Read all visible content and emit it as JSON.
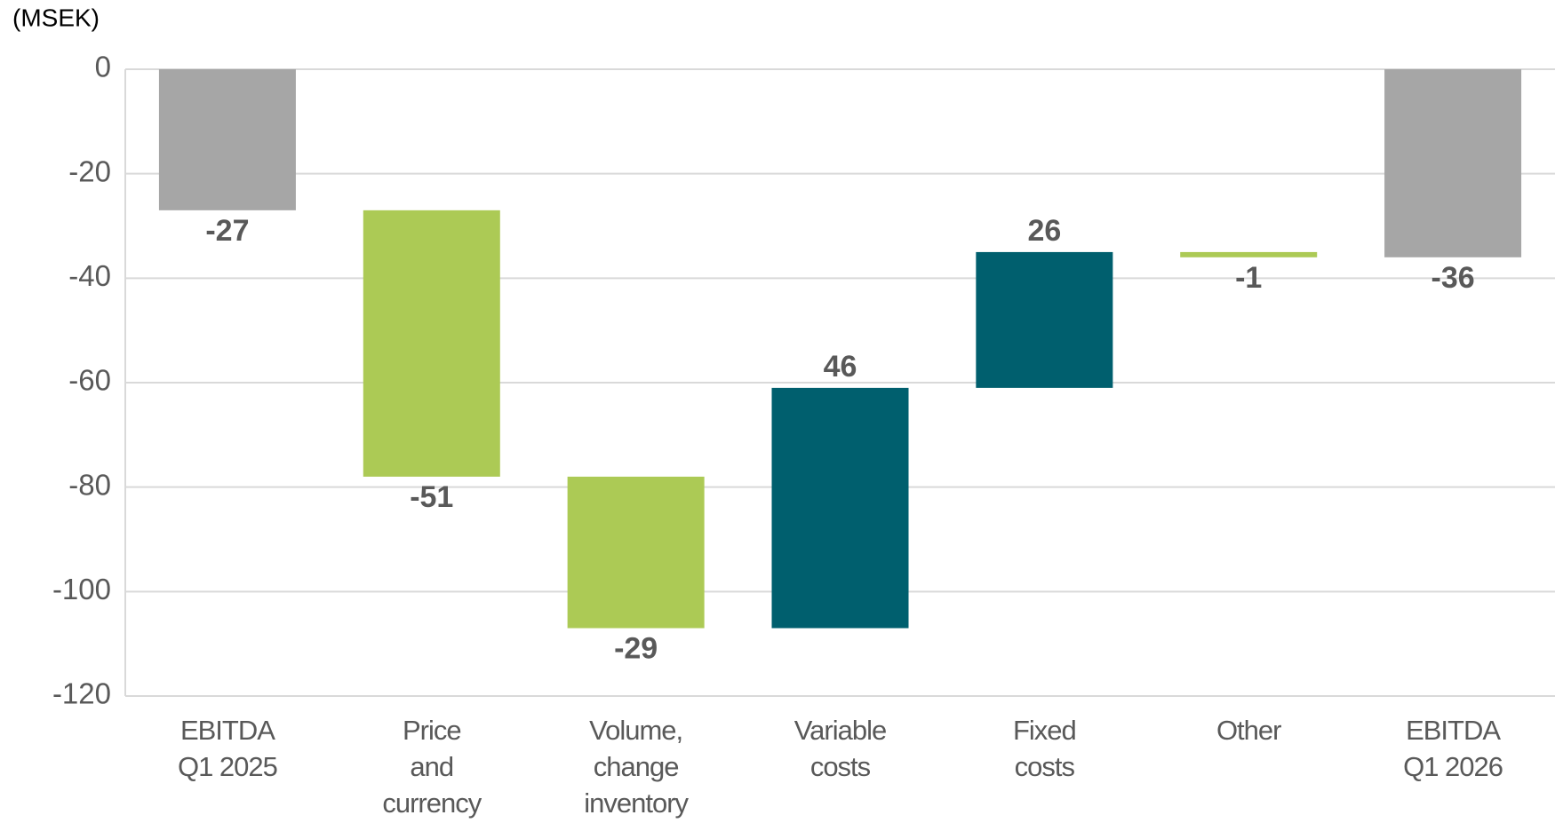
{
  "chart_data": {
    "type": "waterfall",
    "y_label": "(MSEK)",
    "categories": [
      [
        "EBITDA",
        "Q1 2025"
      ],
      [
        "Price",
        "and",
        "currency"
      ],
      [
        "Volume,",
        "change",
        "inventory"
      ],
      [
        "Variable",
        "costs"
      ],
      [
        "Fixed",
        "costs"
      ],
      [
        "Other"
      ],
      [
        "EBITDA",
        "Q1 2026"
      ]
    ],
    "values": [
      -27,
      -51,
      -29,
      46,
      26,
      -1,
      -36
    ],
    "measure": [
      "total",
      "relative",
      "relative",
      "relative",
      "relative",
      "relative",
      "total"
    ],
    "colors": [
      "#a6a6a6",
      "#acca55",
      "#acca55",
      "#005f6e",
      "#005f6e",
      "#acca55",
      "#a6a6a6"
    ],
    "ylim": [
      -120,
      0
    ],
    "yticks": [
      0,
      -20,
      -40,
      -60,
      -80,
      -100,
      -120
    ],
    "grid": true
  }
}
